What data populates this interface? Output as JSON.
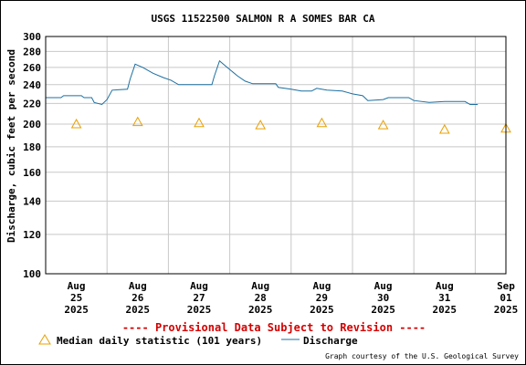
{
  "chart_data": {
    "type": "line",
    "title": "USGS 11522500 SALMON R A SOMES BAR CA",
    "ylabel": "Discharge, cubic feet per second",
    "y_scale": "log",
    "ylim": [
      100,
      300
    ],
    "y_ticks": [
      100,
      120,
      140,
      160,
      180,
      200,
      220,
      240,
      260,
      280,
      300
    ],
    "y_tick_labels": [
      "100",
      "120",
      "140",
      "160",
      "180",
      "200",
      "220",
      "240",
      "260",
      "280",
      "300"
    ],
    "xlim": [
      "2025-08-25T00:00",
      "2025-09-01T12:00"
    ],
    "x_ticks": [
      {
        "date": "2025-08-25T12:00",
        "lines": [
          "Aug",
          "25",
          "2025"
        ]
      },
      {
        "date": "2025-08-26T12:00",
        "lines": [
          "Aug",
          "26",
          "2025"
        ]
      },
      {
        "date": "2025-08-27T12:00",
        "lines": [
          "Aug",
          "27",
          "2025"
        ]
      },
      {
        "date": "2025-08-28T12:00",
        "lines": [
          "Aug",
          "28",
          "2025"
        ]
      },
      {
        "date": "2025-08-29T12:00",
        "lines": [
          "Aug",
          "29",
          "2025"
        ]
      },
      {
        "date": "2025-08-30T12:00",
        "lines": [
          "Aug",
          "30",
          "2025"
        ]
      },
      {
        "date": "2025-08-31T12:00",
        "lines": [
          "Aug",
          "31",
          "2025"
        ]
      },
      {
        "date": "2025-09-01T12:00",
        "lines": [
          "Sep",
          "01",
          "2025"
        ]
      }
    ],
    "grid": true,
    "series": [
      {
        "name": "Discharge",
        "color": "#1c6fa0",
        "style": "line",
        "points": [
          {
            "x": "2025-08-25T00:00",
            "y": 226
          },
          {
            "x": "2025-08-25T06:00",
            "y": 226
          },
          {
            "x": "2025-08-25T07:00",
            "y": 228
          },
          {
            "x": "2025-08-25T14:00",
            "y": 228
          },
          {
            "x": "2025-08-25T15:00",
            "y": 226
          },
          {
            "x": "2025-08-25T18:00",
            "y": 226
          },
          {
            "x": "2025-08-25T19:00",
            "y": 221
          },
          {
            "x": "2025-08-25T22:00",
            "y": 219
          },
          {
            "x": "2025-08-26T00:00",
            "y": 224
          },
          {
            "x": "2025-08-26T02:00",
            "y": 234
          },
          {
            "x": "2025-08-26T08:00",
            "y": 235
          },
          {
            "x": "2025-08-26T09:00",
            "y": 246
          },
          {
            "x": "2025-08-26T11:00",
            "y": 264
          },
          {
            "x": "2025-08-26T14:00",
            "y": 260
          },
          {
            "x": "2025-08-26T18:00",
            "y": 253
          },
          {
            "x": "2025-08-26T22:00",
            "y": 248
          },
          {
            "x": "2025-08-27T01:00",
            "y": 245
          },
          {
            "x": "2025-08-27T04:00",
            "y": 240
          },
          {
            "x": "2025-08-27T12:00",
            "y": 240
          },
          {
            "x": "2025-08-27T17:00",
            "y": 240
          },
          {
            "x": "2025-08-27T18:00",
            "y": 250
          },
          {
            "x": "2025-08-27T20:00",
            "y": 268
          },
          {
            "x": "2025-08-27T23:00",
            "y": 260
          },
          {
            "x": "2025-08-28T03:00",
            "y": 250
          },
          {
            "x": "2025-08-28T06:00",
            "y": 244
          },
          {
            "x": "2025-08-28T09:00",
            "y": 241
          },
          {
            "x": "2025-08-28T18:00",
            "y": 241
          },
          {
            "x": "2025-08-28T19:00",
            "y": 237
          },
          {
            "x": "2025-08-29T00:00",
            "y": 235
          },
          {
            "x": "2025-08-29T04:00",
            "y": 233
          },
          {
            "x": "2025-08-29T08:00",
            "y": 233
          },
          {
            "x": "2025-08-29T10:00",
            "y": 236
          },
          {
            "x": "2025-08-29T14:00",
            "y": 234
          },
          {
            "x": "2025-08-29T20:00",
            "y": 233
          },
          {
            "x": "2025-08-30T00:00",
            "y": 230
          },
          {
            "x": "2025-08-30T04:00",
            "y": 228
          },
          {
            "x": "2025-08-30T06:00",
            "y": 223
          },
          {
            "x": "2025-08-30T12:00",
            "y": 224
          },
          {
            "x": "2025-08-30T14:00",
            "y": 226
          },
          {
            "x": "2025-08-30T22:00",
            "y": 226
          },
          {
            "x": "2025-08-31T00:00",
            "y": 223
          },
          {
            "x": "2025-08-31T06:00",
            "y": 221
          },
          {
            "x": "2025-08-31T12:00",
            "y": 222
          },
          {
            "x": "2025-08-31T20:00",
            "y": 222
          },
          {
            "x": "2025-08-31T22:00",
            "y": 219
          },
          {
            "x": "2025-09-01T01:00",
            "y": 219
          }
        ]
      },
      {
        "name": "Median daily statistic (101 years)",
        "color": "#e8a000",
        "style": "triangle",
        "points": [
          {
            "x": "2025-08-25T12:00",
            "y": 200
          },
          {
            "x": "2025-08-26T12:00",
            "y": 202
          },
          {
            "x": "2025-08-27T12:00",
            "y": 201
          },
          {
            "x": "2025-08-28T12:00",
            "y": 199
          },
          {
            "x": "2025-08-29T12:00",
            "y": 201
          },
          {
            "x": "2025-08-30T12:00",
            "y": 199
          },
          {
            "x": "2025-08-31T12:00",
            "y": 195
          },
          {
            "x": "2025-09-01T12:00",
            "y": 196
          }
        ]
      }
    ]
  },
  "provisional_text": "---- Provisional Data Subject to Revision ----",
  "legend": {
    "median_label": "Median daily statistic (101 years)",
    "discharge_label": "Discharge"
  },
  "credit": "Graph courtesy of the U.S. Geological Survey",
  "colors": {
    "discharge": "#1c6fa0",
    "median": "#e8a000",
    "provisional": "#d40000",
    "grid": "#c8c8c8"
  }
}
